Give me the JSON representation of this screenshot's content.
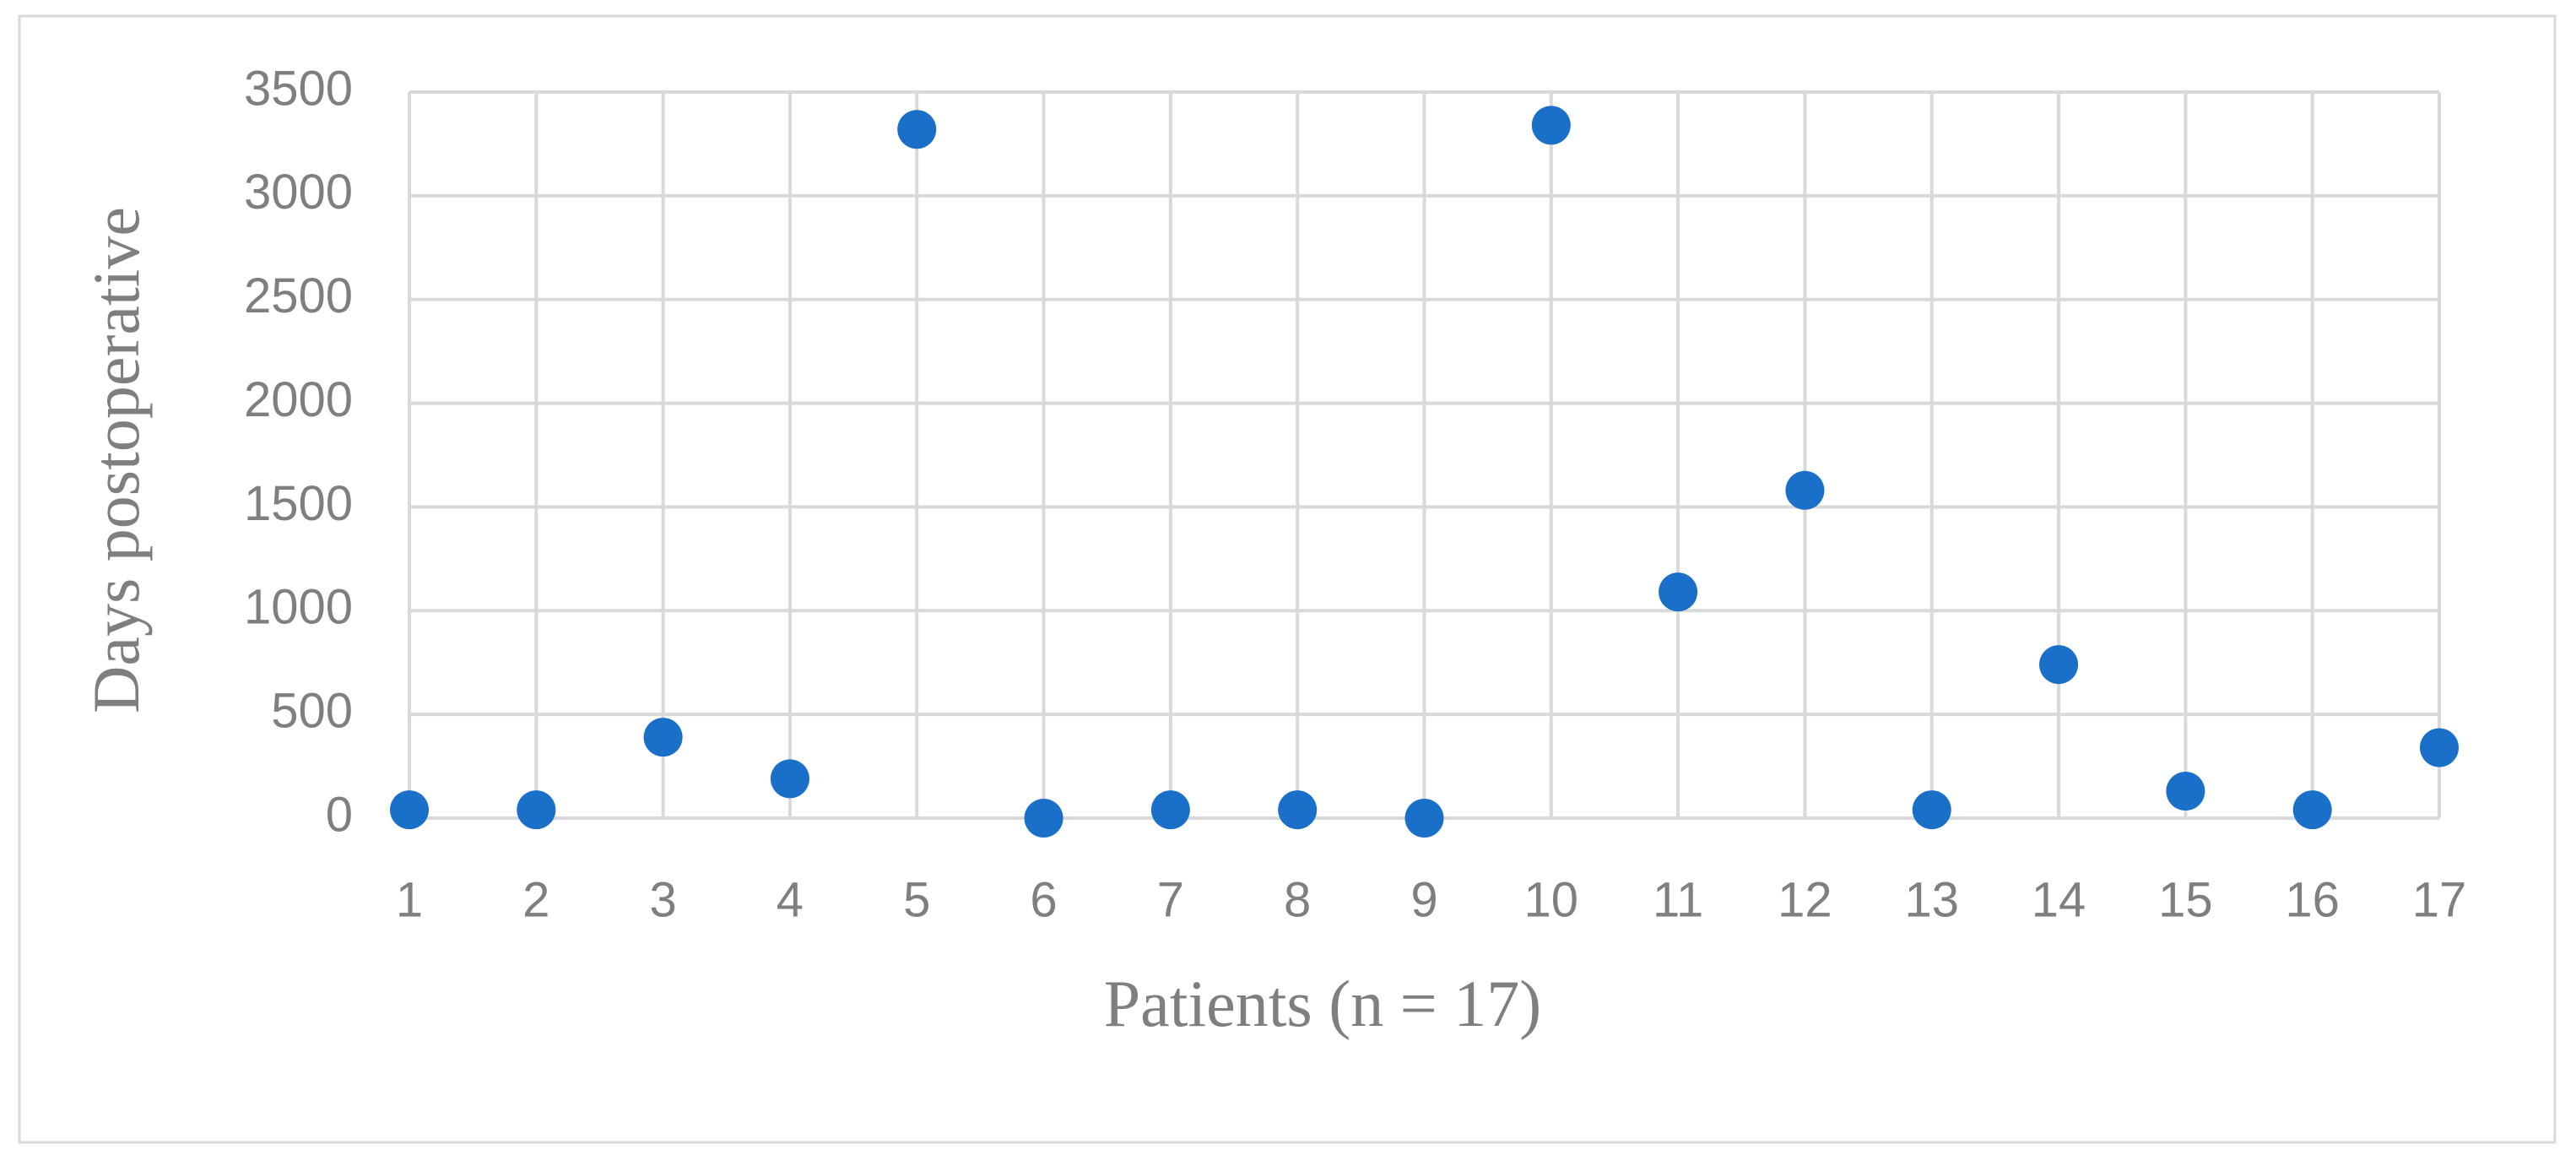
{
  "chart_data": {
    "type": "scatter",
    "x_label": "Patients (n = 17)",
    "y_label": "Days postoperative",
    "x": [
      1,
      2,
      3,
      4,
      5,
      6,
      7,
      8,
      9,
      10,
      11,
      12,
      13,
      14,
      15,
      16,
      17
    ],
    "values": [
      40,
      40,
      390,
      190,
      3320,
      0,
      40,
      40,
      0,
      3340,
      1090,
      1580,
      40,
      740,
      130,
      40,
      340
    ],
    "color": "#1a6fc9",
    "xlim": [
      1,
      17
    ],
    "xticks": [
      1,
      2,
      3,
      4,
      5,
      6,
      7,
      8,
      9,
      10,
      11,
      12,
      13,
      14,
      15,
      16,
      17
    ],
    "ylim": [
      0,
      3500
    ],
    "yticks": [
      0,
      500,
      1000,
      1500,
      2000,
      2500,
      3000,
      3500
    ],
    "grid": true
  }
}
